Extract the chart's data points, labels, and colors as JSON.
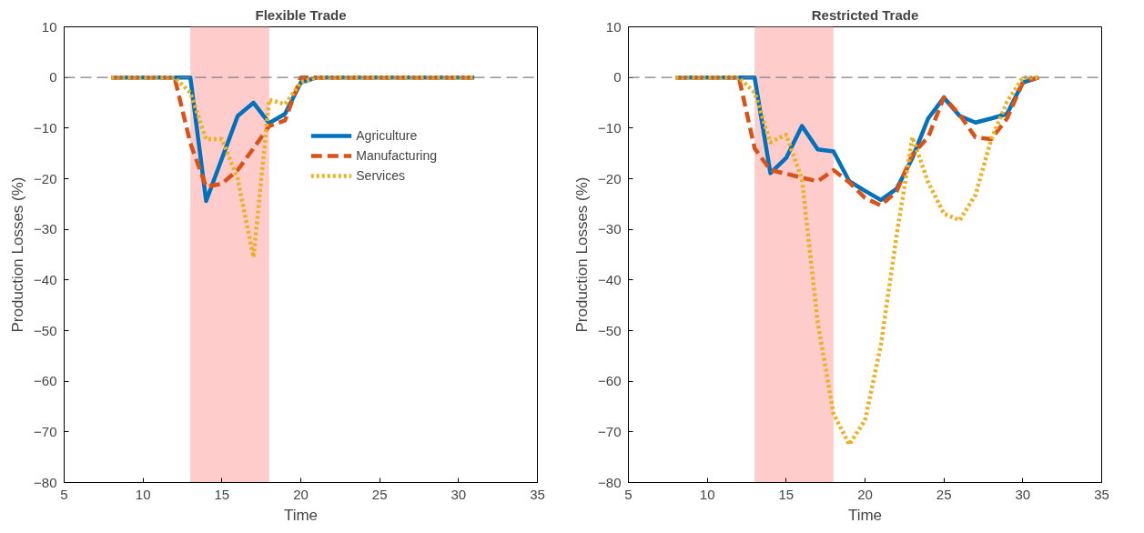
{
  "chart_data": [
    {
      "type": "line",
      "title": "Flexible Trade",
      "xlabel": "Time",
      "ylabel": "Production Losses (%)",
      "x": [
        8,
        9,
        10,
        11,
        12,
        13,
        14,
        15,
        16,
        17,
        18,
        19,
        20,
        21,
        22,
        23,
        24,
        25,
        26,
        27,
        28,
        29,
        30,
        31
      ],
      "xlim": [
        5,
        35
      ],
      "xticks": [
        5,
        10,
        15,
        20,
        25,
        30,
        35
      ],
      "ylim": [
        -80,
        10
      ],
      "yticks": [
        -80,
        -70,
        -60,
        -50,
        -40,
        -30,
        -20,
        -10,
        0,
        10
      ],
      "grid": false,
      "legend": "top right",
      "marker": "none",
      "series": [
        {
          "name": "Agriculture",
          "color": "#0072bd",
          "line_style": "solid",
          "values": [
            0,
            0,
            0,
            0,
            0,
            0,
            -24.4,
            -16,
            -7.6,
            -5,
            -9,
            -7.2,
            -1,
            0,
            0,
            0,
            0,
            0,
            0,
            0,
            0,
            0,
            0,
            0
          ]
        },
        {
          "name": "Manufacturing",
          "color": "#d95319",
          "line_style": "dashed",
          "values": [
            0,
            0,
            0,
            0,
            0,
            -13,
            -21.6,
            -21,
            -18.3,
            -14,
            -9.6,
            -8.5,
            0,
            0,
            0,
            0,
            0,
            0,
            0,
            0,
            0,
            0,
            0,
            0
          ]
        },
        {
          "name": "Services",
          "color": "#edb120",
          "line_style": "dotted",
          "values": [
            0,
            0,
            0,
            0,
            0,
            -3,
            -12.2,
            -12.2,
            -20,
            -35.5,
            -4.4,
            -5.3,
            -1,
            0,
            0,
            0,
            0,
            0,
            0,
            0,
            0,
            0,
            0,
            0
          ]
        }
      ],
      "ref_lines": [
        {
          "axis": "y",
          "value": 0,
          "color": "#808080",
          "line_style": "dashed"
        }
      ],
      "bands": [
        {
          "axis": "x",
          "from": 13,
          "to": 18,
          "color": "#ffcccc"
        }
      ]
    },
    {
      "type": "line",
      "title": "Restricted Trade",
      "xlabel": "Time",
      "ylabel": "Production Losses (%)",
      "x": [
        8,
        9,
        10,
        11,
        12,
        13,
        14,
        15,
        16,
        17,
        18,
        19,
        20,
        21,
        22,
        23,
        24,
        25,
        26,
        27,
        28,
        29,
        30,
        31
      ],
      "xlim": [
        5,
        35
      ],
      "xticks": [
        5,
        10,
        15,
        20,
        25,
        30,
        35
      ],
      "ylim": [
        -80,
        10
      ],
      "yticks": [
        -80,
        -70,
        -60,
        -50,
        -40,
        -30,
        -20,
        -10,
        0,
        10
      ],
      "grid": false,
      "marker": "none",
      "series": [
        {
          "color": "#0072bd",
          "line_style": "solid",
          "values": [
            0,
            0,
            0,
            0,
            0,
            0,
            -18.9,
            -15.9,
            -9.6,
            -14.2,
            -14.6,
            -20.5,
            -22.4,
            -24.2,
            -22,
            -15.9,
            -8.1,
            -4,
            -7.6,
            -8.9,
            -8.1,
            -7.2,
            -1,
            0
          ]
        },
        {
          "color": "#d95319",
          "line_style": "dashed",
          "values": [
            0,
            0,
            0,
            0,
            0,
            -14,
            -18.3,
            -19,
            -19.8,
            -20.5,
            -18.3,
            -20.7,
            -23.8,
            -25.3,
            -22.5,
            -15.2,
            -11.8,
            -3.9,
            -7.4,
            -11.8,
            -12.2,
            -8.1,
            -1,
            0
          ]
        },
        {
          "color": "#edb120",
          "line_style": "dotted",
          "values": [
            0,
            0,
            0,
            0,
            0,
            -3,
            -12.8,
            -11.3,
            -20.1,
            -48.4,
            -66.4,
            -72.5,
            -67.7,
            -52.9,
            -31.2,
            -11.8,
            -20.7,
            -26.9,
            -28.2,
            -23.2,
            -12.2,
            -4.8,
            0,
            0
          ]
        }
      ],
      "ref_lines": [
        {
          "axis": "y",
          "value": 0,
          "color": "#808080",
          "line_style": "dashed"
        }
      ],
      "bands": [
        {
          "axis": "x",
          "from": 13,
          "to": 18,
          "color": "#ffcccc"
        }
      ]
    }
  ]
}
